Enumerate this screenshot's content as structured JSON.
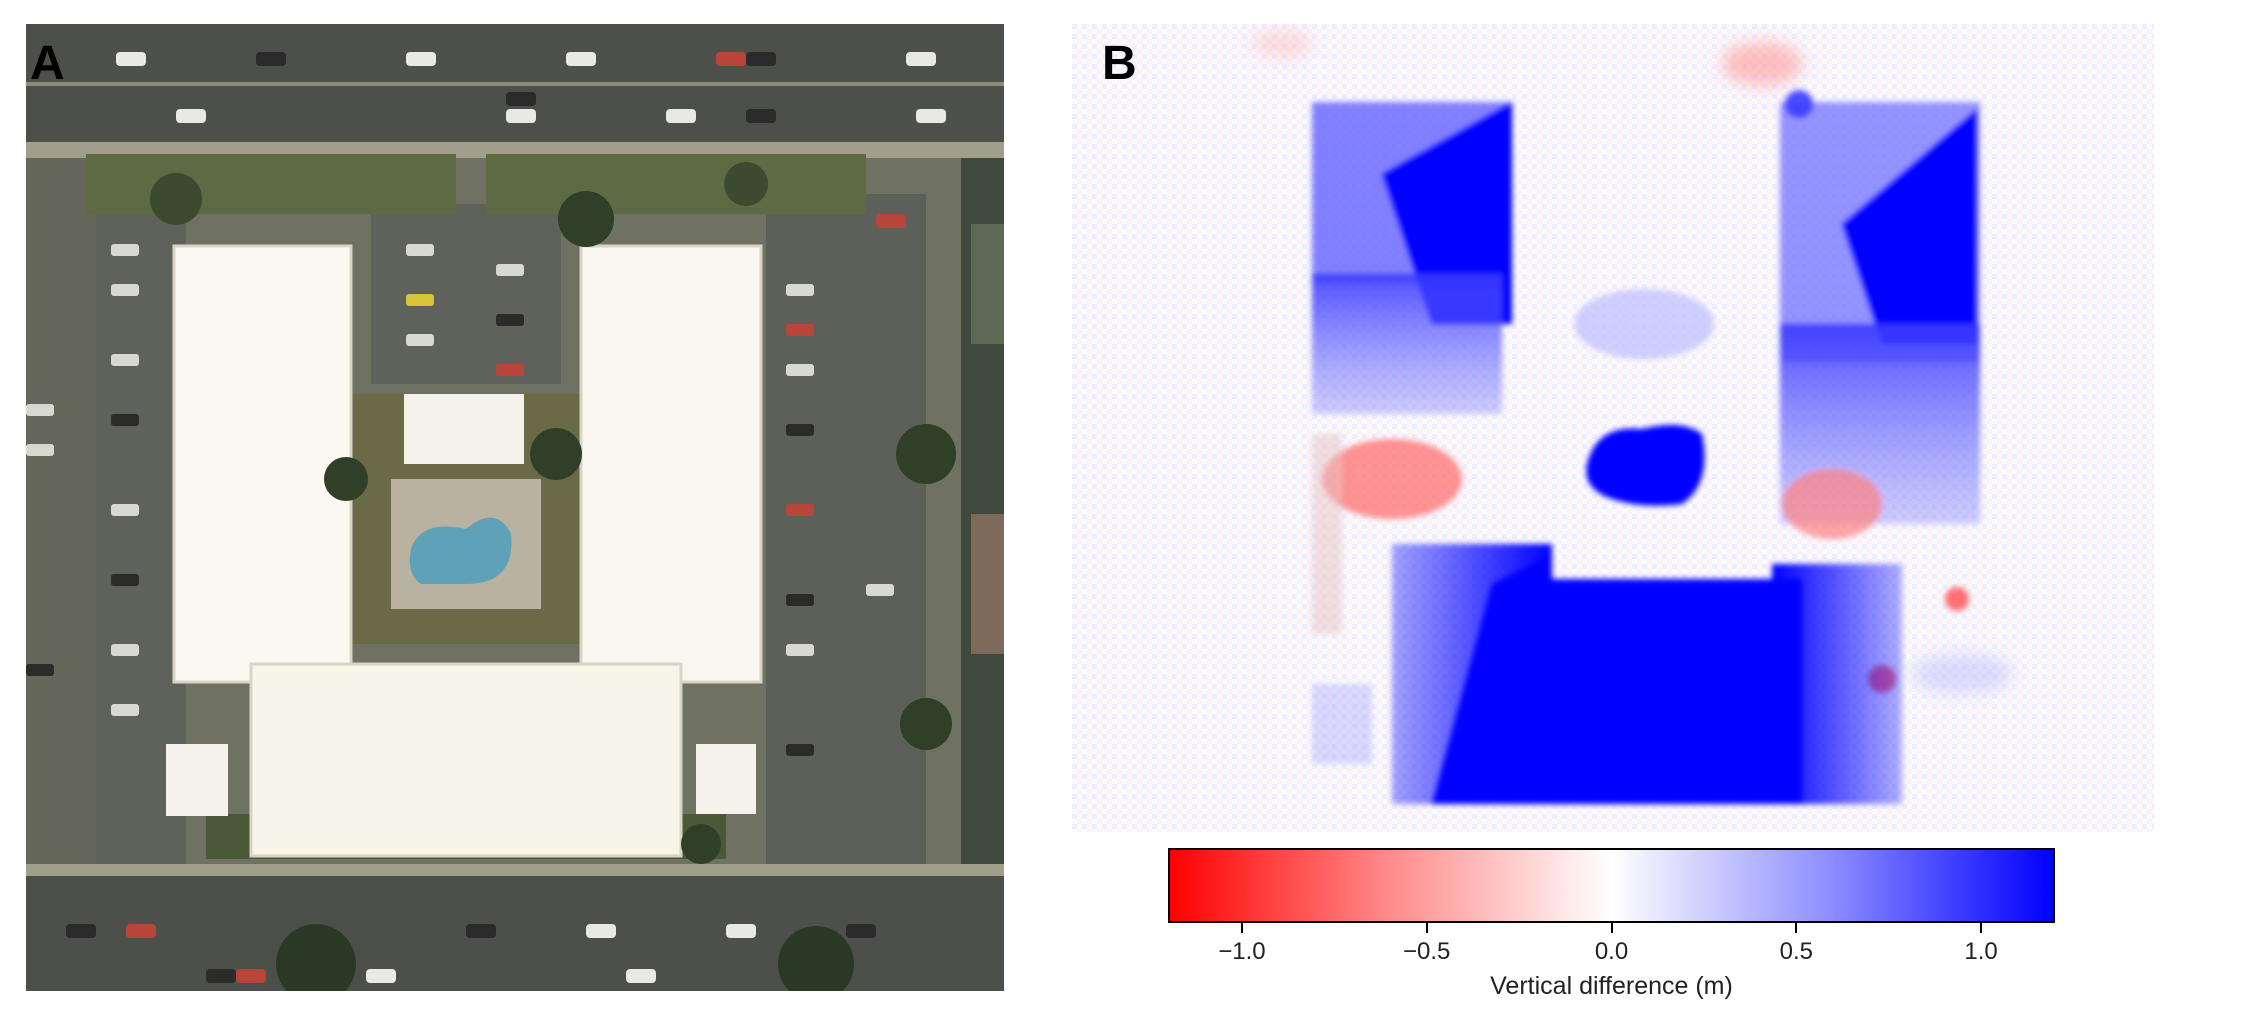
{
  "panels": {
    "a": {
      "letter": "A"
    },
    "b": {
      "letter": "B"
    }
  },
  "colorbar": {
    "label": "Vertical difference (m)",
    "min": -1.2,
    "max": 1.2,
    "ticks": [
      {
        "value": -1.0,
        "label": "−1.0"
      },
      {
        "value": -0.5,
        "label": "−0.5"
      },
      {
        "value": 0.0,
        "label": "0.0"
      },
      {
        "value": 0.5,
        "label": "0.5"
      },
      {
        "value": 1.0,
        "label": "1.0"
      }
    ],
    "colors": {
      "negative": "#ff0000",
      "zero": "#ffffff",
      "positive": "#0000ff"
    }
  }
}
